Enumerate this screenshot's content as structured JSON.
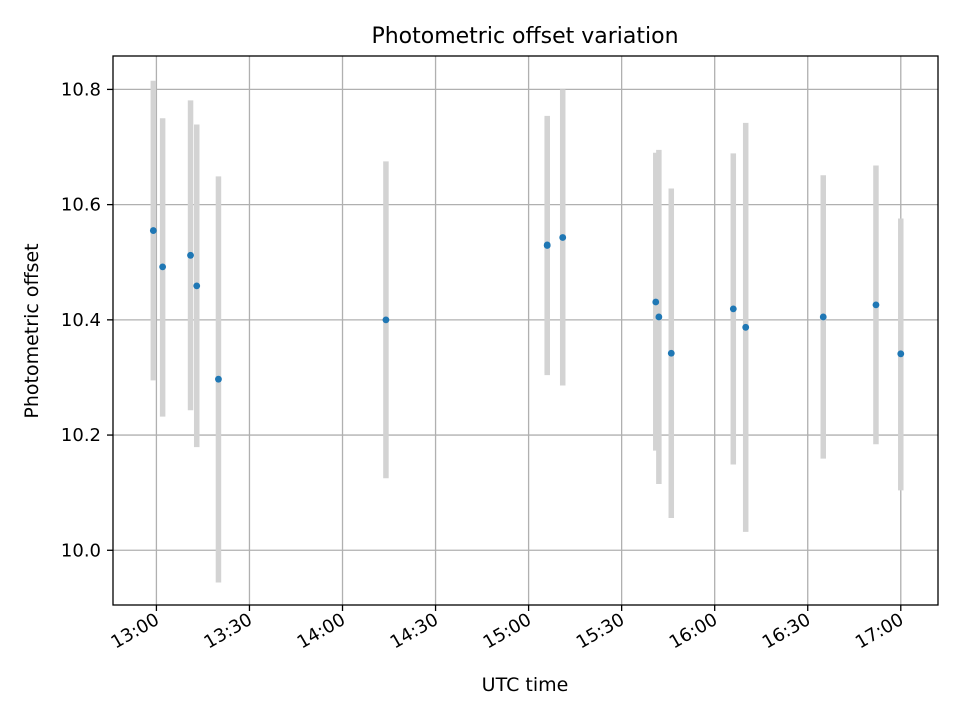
{
  "chart_data": {
    "type": "scatter",
    "title": "Photometric offset variation",
    "xlabel": "UTC time",
    "ylabel": "Photometric offset",
    "xlim": [
      "12:46",
      "17:12"
    ],
    "ylim": [
      9.905,
      10.858
    ],
    "x_ticks": [
      "13:00",
      "13:30",
      "14:00",
      "14:30",
      "15:00",
      "15:30",
      "16:00",
      "16:30",
      "17:00"
    ],
    "y_ticks": [
      "10.0",
      "10.2",
      "10.4",
      "10.6",
      "10.8"
    ],
    "grid": true,
    "series": [
      {
        "error_color": "#d3d3d3",
        "marker_color": "#1f77b4",
        "points": [
          {
            "t": "12:59",
            "y": 10.555,
            "lo": 10.295,
            "hi": 10.815
          },
          {
            "t": "13:02",
            "y": 10.492,
            "lo": 10.232,
            "hi": 10.75
          },
          {
            "t": "13:11",
            "y": 10.512,
            "lo": 10.243,
            "hi": 10.781
          },
          {
            "t": "13:13",
            "y": 10.459,
            "lo": 10.179,
            "hi": 10.739
          },
          {
            "t": "13:20",
            "y": 10.297,
            "lo": 9.944,
            "hi": 10.649
          },
          {
            "t": "14:14",
            "y": 10.4,
            "lo": 10.125,
            "hi": 10.675
          },
          {
            "t": "15:06",
            "y": 10.529,
            "lo": 10.304,
            "hi": 10.754
          },
          {
            "t": "15:06",
            "y": 10.53,
            "lo": 10.308,
            "hi": 10.751
          },
          {
            "t": "15:11",
            "y": 10.543,
            "lo": 10.286,
            "hi": 10.8
          },
          {
            "t": "15:41",
            "y": 10.431,
            "lo": 10.173,
            "hi": 10.69
          },
          {
            "t": "15:42",
            "y": 10.405,
            "lo": 10.115,
            "hi": 10.695
          },
          {
            "t": "15:46",
            "y": 10.342,
            "lo": 10.056,
            "hi": 10.628
          },
          {
            "t": "16:06",
            "y": 10.419,
            "lo": 10.149,
            "hi": 10.689
          },
          {
            "t": "16:10",
            "y": 10.387,
            "lo": 10.032,
            "hi": 10.742
          },
          {
            "t": "16:35",
            "y": 10.405,
            "lo": 10.159,
            "hi": 10.651
          },
          {
            "t": "16:52",
            "y": 10.426,
            "lo": 10.184,
            "hi": 10.668
          },
          {
            "t": "17:00",
            "y": 10.341,
            "lo": 10.104,
            "hi": 10.576
          }
        ]
      }
    ]
  }
}
